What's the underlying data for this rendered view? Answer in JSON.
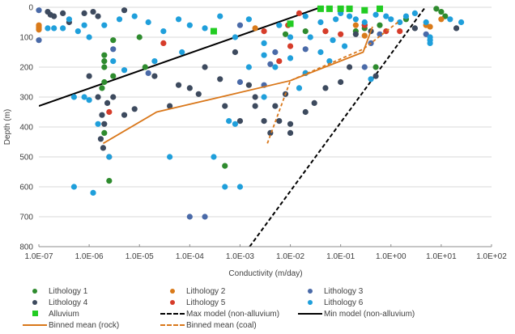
{
  "chart_data": {
    "type": "scatter",
    "title": "",
    "xlabel": "Conductivity (m/day)",
    "ylabel": "Depth (m)",
    "x_scale": "log",
    "xlim": [
      1e-07,
      100
    ],
    "ylim": [
      0,
      800
    ],
    "y_inverted": true,
    "grid": "horizontal",
    "legend_position": "bottom",
    "x_ticks": [
      "1.0E-07",
      "1.0E-06",
      "1.0E-05",
      "1.0E-04",
      "1.0E-03",
      "1.0E-02",
      "1.0E-01",
      "1.0E+00",
      "1.0E+01",
      "1.0E+02"
    ],
    "y_ticks": [
      "0",
      "100",
      "200",
      "300",
      "400",
      "500",
      "600",
      "700",
      "800"
    ],
    "colors": {
      "lith1": "#2e8b2e",
      "lith2": "#d97a1a",
      "lith3": "#4a6aa8",
      "lith4": "#3d4a5e",
      "lith5": "#d63c2a",
      "lith6": "#1f9fdb",
      "alluvium": "#22cc22",
      "max_model": "#000000",
      "min_model": "#000000",
      "binned_rock": "#d9771a",
      "binned_coal": "#d9771a"
    },
    "series": [
      {
        "name": "Lithology 1",
        "key": "lith1",
        "marker": "circle",
        "points": [
          [
            2e-06,
            160
          ],
          [
            2e-06,
            180
          ],
          [
            2e-06,
            200
          ],
          [
            2e-06,
            250
          ],
          [
            3e-06,
            230
          ],
          [
            2e-06,
            420
          ],
          [
            2.5e-06,
            580
          ],
          [
            3e-06,
            110
          ],
          [
            1e-05,
            100
          ],
          [
            1.3e-05,
            200
          ],
          [
            1.8e-06,
            270
          ],
          [
            0.0005,
            530
          ],
          [
            0.008,
            90
          ],
          [
            0.02,
            80
          ],
          [
            0.2,
            80
          ],
          [
            0.5,
            200
          ],
          [
            2,
            40
          ],
          [
            8,
            5
          ],
          [
            10,
            15
          ],
          [
            12,
            30
          ],
          [
            0.6,
            60
          ],
          [
            0.3,
            70
          ]
        ]
      },
      {
        "name": "Lithology 2",
        "key": "lith2",
        "marker": "circle",
        "points": [
          [
            1e-07,
            60
          ],
          [
            1e-07,
            65
          ],
          [
            1e-07,
            70
          ],
          [
            1e-07,
            75
          ],
          [
            0.002,
            70
          ],
          [
            0.05,
            80
          ],
          [
            0.3,
            95
          ],
          [
            0.2,
            60
          ],
          [
            5,
            60
          ],
          [
            6,
            65
          ],
          [
            10,
            40
          ]
        ]
      },
      {
        "name": "Lithology 3",
        "key": "lith3",
        "marker": "circle",
        "points": [
          [
            1e-07,
            10
          ],
          [
            1e-07,
            110
          ],
          [
            3e-06,
            140
          ],
          [
            1.5e-05,
            220
          ],
          [
            0.0001,
            700
          ],
          [
            0.0002,
            700
          ],
          [
            0.001,
            250
          ],
          [
            0.003,
            260
          ],
          [
            0.005,
            150
          ],
          [
            0.004,
            190
          ],
          [
            0.4,
            120
          ],
          [
            0.6,
            90
          ],
          [
            0.3,
            200
          ],
          [
            0.001,
            60
          ],
          [
            0.02,
            140
          ],
          [
            5,
            90
          ]
        ]
      },
      {
        "name": "Lithology 4",
        "key": "lith4",
        "marker": "circle",
        "points": [
          [
            1.5e-07,
            15
          ],
          [
            1.7e-07,
            25
          ],
          [
            2e-07,
            30
          ],
          [
            3e-07,
            20
          ],
          [
            4e-07,
            50
          ],
          [
            8e-07,
            20
          ],
          [
            1.2e-06,
            15
          ],
          [
            1.5e-06,
            30
          ],
          [
            5e-06,
            10
          ],
          [
            1e-06,
            230
          ],
          [
            1.5e-06,
            300
          ],
          [
            1.8e-06,
            360
          ],
          [
            1.7e-06,
            440
          ],
          [
            1.9e-06,
            470
          ],
          [
            2e-06,
            390
          ],
          [
            2.3e-06,
            320
          ],
          [
            3e-06,
            300
          ],
          [
            5e-06,
            360
          ],
          [
            8e-06,
            340
          ],
          [
            2e-05,
            230
          ],
          [
            4e-05,
            330
          ],
          [
            6e-05,
            260
          ],
          [
            0.0001,
            270
          ],
          [
            0.00015,
            290
          ],
          [
            0.0002,
            200
          ],
          [
            0.0004,
            240
          ],
          [
            0.0005,
            330
          ],
          [
            0.001,
            380
          ],
          [
            0.002,
            300
          ],
          [
            0.003,
            380
          ],
          [
            0.004,
            420
          ],
          [
            0.005,
            330
          ],
          [
            0.008,
            290
          ],
          [
            0.01,
            390
          ],
          [
            0.02,
            350
          ],
          [
            0.03,
            320
          ],
          [
            0.05,
            270
          ],
          [
            0.1,
            250
          ],
          [
            0.15,
            200
          ],
          [
            0.3,
            60
          ],
          [
            0.4,
            80
          ],
          [
            0.2,
            90
          ],
          [
            0.5,
            230
          ],
          [
            3,
            70
          ],
          [
            20,
            70
          ],
          [
            0.002,
            330
          ],
          [
            0.0015,
            260
          ],
          [
            0.0008,
            150
          ],
          [
            0.006,
            380
          ],
          [
            0.01,
            420
          ]
        ]
      },
      {
        "name": "Lithology 5",
        "key": "lith5",
        "marker": "circle",
        "points": [
          [
            2.5e-06,
            350
          ],
          [
            2.5e-06,
            500
          ],
          [
            3e-05,
            120
          ],
          [
            0.003,
            80
          ],
          [
            0.006,
            180
          ],
          [
            0.009,
            60
          ],
          [
            0.02,
            220
          ],
          [
            0.05,
            80
          ],
          [
            0.1,
            90
          ],
          [
            0.3,
            60
          ],
          [
            0.8,
            80
          ],
          [
            1.5,
            80
          ],
          [
            0.01,
            130
          ],
          [
            0.015,
            20
          ]
        ]
      },
      {
        "name": "Lithology 6",
        "key": "lith6",
        "marker": "circle",
        "points": [
          [
            1.5e-07,
            70
          ],
          [
            2e-07,
            70
          ],
          [
            3e-07,
            70
          ],
          [
            4e-07,
            40
          ],
          [
            6e-07,
            80
          ],
          [
            8e-07,
            60
          ],
          [
            5e-07,
            300
          ],
          [
            8e-07,
            300
          ],
          [
            1e-06,
            310
          ],
          [
            5e-07,
            600
          ],
          [
            1.2e-06,
            620
          ],
          [
            1.5e-06,
            390
          ],
          [
            2.5e-06,
            500
          ],
          [
            4e-05,
            500
          ],
          [
            0.0003,
            500
          ],
          [
            0.0005,
            600
          ],
          [
            0.001,
            600
          ],
          [
            0.0008,
            390
          ],
          [
            0.0006,
            380
          ],
          [
            1e-06,
            100
          ],
          [
            2e-06,
            60
          ],
          [
            4e-06,
            40
          ],
          [
            8e-06,
            30
          ],
          [
            1.5e-05,
            50
          ],
          [
            3e-05,
            80
          ],
          [
            6e-05,
            40
          ],
          [
            0.0001,
            60
          ],
          [
            0.0002,
            70
          ],
          [
            0.0004,
            30
          ],
          [
            0.0008,
            100
          ],
          [
            0.0015,
            40
          ],
          [
            0.003,
            120
          ],
          [
            0.006,
            60
          ],
          [
            0.01,
            100
          ],
          [
            0.02,
            30
          ],
          [
            0.04,
            50
          ],
          [
            0.08,
            40
          ],
          [
            0.1,
            20
          ],
          [
            0.15,
            30
          ],
          [
            0.2,
            40
          ],
          [
            0.3,
            50
          ],
          [
            0.5,
            25
          ],
          [
            0.8,
            30
          ],
          [
            1,
            40
          ],
          [
            1.5,
            50
          ],
          [
            2,
            30
          ],
          [
            3,
            20
          ],
          [
            5,
            50
          ],
          [
            6,
            100
          ],
          [
            6,
            110
          ],
          [
            6,
            120
          ],
          [
            15,
            40
          ],
          [
            25,
            50
          ],
          [
            0.4,
            240
          ],
          [
            0.01,
            170
          ],
          [
            0.005,
            200
          ],
          [
            0.02,
            220
          ],
          [
            0.003,
            300
          ],
          [
            0.04,
            150
          ],
          [
            0.06,
            180
          ],
          [
            0.003,
            160
          ],
          [
            2e-05,
            180
          ],
          [
            5e-06,
            210
          ],
          [
            3e-06,
            180
          ],
          [
            7e-05,
            150
          ],
          [
            0.0015,
            200
          ],
          [
            0.015,
            270
          ],
          [
            0.025,
            100
          ],
          [
            0.07,
            110
          ],
          [
            0.12,
            130
          ]
        ]
      },
      {
        "name": "Alluvium",
        "key": "alluvium",
        "marker": "square",
        "points": [
          [
            0.04,
            5
          ],
          [
            0.06,
            5
          ],
          [
            0.1,
            5
          ],
          [
            0.15,
            5
          ],
          [
            0.3,
            10
          ],
          [
            0.6,
            5
          ],
          [
            0.01,
            55
          ],
          [
            0.0003,
            80
          ]
        ]
      }
    ],
    "lines": [
      {
        "name": "Max model (non-alluvium)",
        "key": "max_model",
        "style": "dashed",
        "points": [
          [
            0.00155,
            800
          ],
          [
            4.8,
            0
          ]
        ]
      },
      {
        "name": "Min model (non-alluvium)",
        "key": "min_model",
        "style": "solid",
        "points": [
          [
            1e-07,
            330
          ],
          [
            0.04,
            0
          ]
        ]
      },
      {
        "name": "Binned mean (rock)",
        "key": "binned_rock",
        "style": "solid",
        "points": [
          [
            1.9e-06,
            455
          ],
          [
            2.2e-05,
            350
          ],
          [
            0.01,
            245
          ],
          [
            0.28,
            150
          ],
          [
            0.43,
            65
          ]
        ]
      },
      {
        "name": "Binned mean (coal)",
        "key": "binned_coal",
        "style": "dashed",
        "points": [
          [
            0.0035,
            455
          ],
          [
            0.01,
            245
          ],
          [
            0.28,
            140
          ],
          [
            1.5,
            45
          ]
        ]
      }
    ]
  },
  "legend": {
    "items": [
      {
        "label": "Lithology 1",
        "key": "lith1",
        "symbol": "circle"
      },
      {
        "label": "Lithology 2",
        "key": "lith2",
        "symbol": "circle"
      },
      {
        "label": "Lithology 3",
        "key": "lith3",
        "symbol": "circle"
      },
      {
        "label": "Lithology 4",
        "key": "lith4",
        "symbol": "circle"
      },
      {
        "label": "Lithology 5",
        "key": "lith5",
        "symbol": "circle"
      },
      {
        "label": "Lithology 6",
        "key": "lith6",
        "symbol": "circle"
      },
      {
        "label": "Alluvium",
        "key": "alluvium",
        "symbol": "square"
      },
      {
        "label": "Max model (non-alluvium)",
        "key": "max_model",
        "symbol": "dashed-line"
      },
      {
        "label": "Min model (non-alluvium)",
        "key": "min_model",
        "symbol": "solid-line"
      },
      {
        "label": "Binned mean (rock)",
        "key": "binned_rock",
        "symbol": "solid-line"
      },
      {
        "label": "Binned mean (coal)",
        "key": "binned_coal",
        "symbol": "dashed-line"
      }
    ]
  }
}
